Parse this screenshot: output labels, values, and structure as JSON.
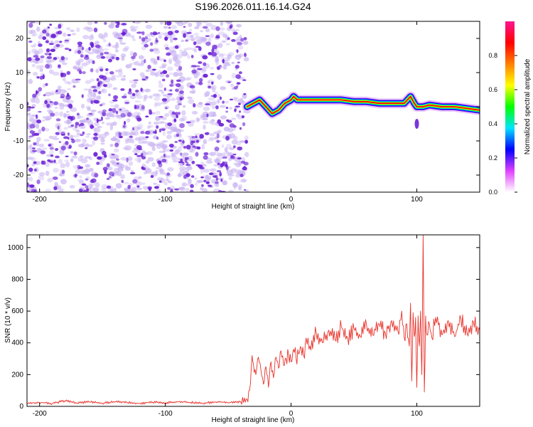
{
  "title": "S196.2026.011.16.14.G24",
  "colors": {
    "snr_line": "#e8322a",
    "axes": "#000000",
    "scatter_blob": "#6a1fd6",
    "scatter_light": "#c9b4f2"
  },
  "chart_data": [
    {
      "type": "heatmap",
      "title": "S196.2026.011.16.14.G24",
      "xlabel": "Height of straight line (km)",
      "ylabel": "Frequency (Hz)",
      "xlim": [
        -210,
        150
      ],
      "ylim": [
        -25,
        25
      ],
      "xticks": [
        -200,
        -100,
        0,
        100
      ],
      "xtick_labels": [
        "-200",
        "-100",
        "0",
        "100"
      ],
      "yticks": [
        -20,
        -10,
        0,
        10,
        20
      ],
      "ytick_labels": [
        "-20",
        "-10",
        "0",
        "10",
        "20"
      ],
      "noise_region_x": [
        -210,
        -35
      ],
      "ridge": {
        "x": [
          -35,
          -30,
          -25,
          -20,
          -15,
          -10,
          -5,
          0,
          2,
          5,
          10,
          20,
          30,
          40,
          50,
          60,
          70,
          80,
          90,
          95,
          98,
          100,
          105,
          110,
          120,
          130,
          140,
          150
        ],
        "freq": [
          0,
          1,
          2,
          0,
          -2,
          -1,
          1,
          2,
          3,
          2,
          2,
          2,
          2,
          2,
          1.5,
          1.5,
          1,
          1,
          1,
          3,
          1,
          0,
          0,
          0.5,
          0,
          0,
          -0.5,
          -1
        ]
      },
      "colorbar": {
        "label": "Normalized spectral amplitude",
        "range": [
          0,
          1
        ],
        "ticks": [
          0.0,
          0.2,
          0.4,
          0.6,
          0.8
        ],
        "tick_labels": [
          "0.0",
          "0.2",
          "0.4",
          "0.6",
          "0.8"
        ],
        "colors": [
          "#ffffff",
          "#e040ff",
          "#0000ff",
          "#00e5ff",
          "#00ff00",
          "#ffff00",
          "#ff8000",
          "#ff0000",
          "#ff1493"
        ]
      }
    },
    {
      "type": "line",
      "xlabel": "Height of straight line (km)",
      "ylabel": "SNR (10 * v/v)",
      "xlim": [
        -210,
        150
      ],
      "ylim": [
        0,
        1080
      ],
      "xticks": [
        -200,
        -100,
        0,
        100
      ],
      "xtick_labels": [
        "-200",
        "-100",
        "0",
        "100"
      ],
      "yticks": [
        0,
        200,
        400,
        600,
        800,
        1000
      ],
      "ytick_labels": [
        "0",
        "200",
        "400",
        "600",
        "800",
        "1000"
      ],
      "series": [
        {
          "name": "SNR",
          "x": [
            -210,
            -200,
            -190,
            -180,
            -170,
            -160,
            -150,
            -140,
            -130,
            -120,
            -110,
            -100,
            -90,
            -80,
            -70,
            -60,
            -50,
            -40,
            -35,
            -33,
            -31,
            -30,
            -28,
            -26,
            -24,
            -22,
            -20,
            -18,
            -16,
            -14,
            -12,
            -10,
            -8,
            -6,
            -4,
            -2,
            0,
            2,
            4,
            6,
            8,
            10,
            12,
            15,
            20,
            25,
            30,
            35,
            40,
            45,
            50,
            55,
            60,
            65,
            70,
            75,
            80,
            85,
            88,
            90,
            92,
            94,
            95,
            96,
            97,
            98,
            99,
            100,
            101,
            102,
            103,
            104,
            105,
            106,
            107,
            108,
            110,
            112,
            115,
            120,
            125,
            130,
            135,
            140,
            145,
            150
          ],
          "values": [
            20,
            25,
            18,
            35,
            22,
            28,
            20,
            30,
            24,
            19,
            27,
            22,
            30,
            25,
            20,
            28,
            24,
            30,
            45,
            100,
            320,
            270,
            200,
            310,
            230,
            140,
            250,
            120,
            280,
            180,
            310,
            240,
            350,
            260,
            300,
            330,
            280,
            360,
            300,
            330,
            370,
            320,
            430,
            380,
            460,
            400,
            480,
            420,
            500,
            430,
            490,
            440,
            510,
            450,
            520,
            460,
            540,
            470,
            600,
            430,
            520,
            380,
            650,
            160,
            590,
            440,
            560,
            120,
            570,
            380,
            600,
            200,
            1080,
            90,
            570,
            450,
            520,
            430,
            560,
            450,
            540,
            440,
            550,
            460,
            530,
            480
          ]
        }
      ]
    }
  ]
}
